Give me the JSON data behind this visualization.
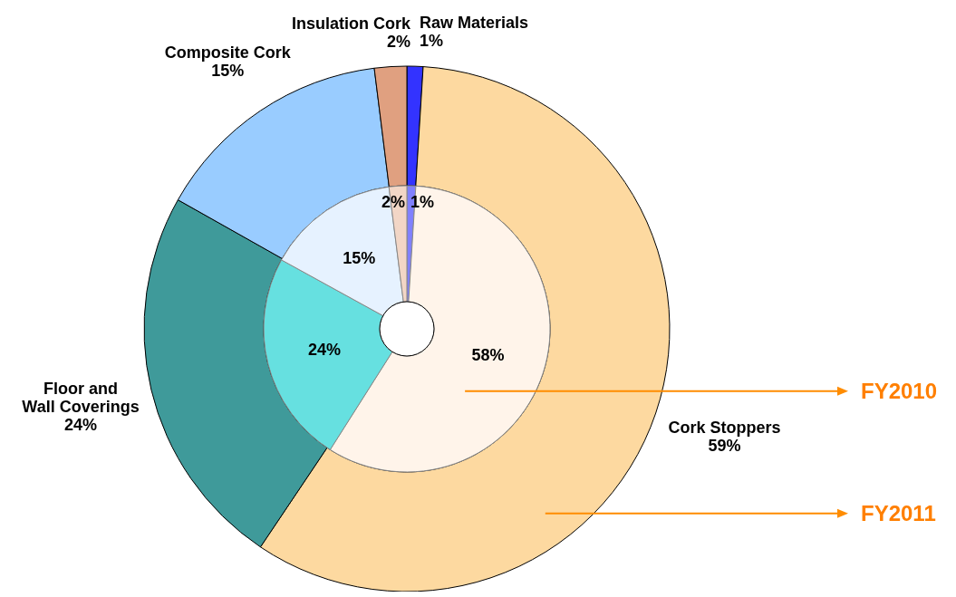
{
  "chart_data": {
    "type": "donut",
    "categories": [
      "Raw Materials",
      "Cork Stoppers",
      "Floor and Wall Coverings",
      "Composite Cork",
      "Insulation Cork"
    ],
    "series": [
      {
        "name": "FY2011",
        "values": [
          1,
          59,
          24,
          15,
          2
        ],
        "value_labels": [
          "1%",
          "59%",
          "24%",
          "15%",
          "2%"
        ],
        "colors": [
          "#3333ff",
          "#fdd9a0",
          "#3f9a9a",
          "#99ccff",
          "#e0a080"
        ]
      },
      {
        "name": "FY2010",
        "values": [
          1,
          58,
          24,
          15,
          2
        ],
        "value_labels": [
          "1%",
          "58%",
          "24%",
          "15%",
          "2%"
        ],
        "colors": [
          "#8080ff",
          "#fff4ea",
          "#66e0e0",
          "#e6f2ff",
          "#f2d6c6"
        ]
      }
    ]
  }
}
